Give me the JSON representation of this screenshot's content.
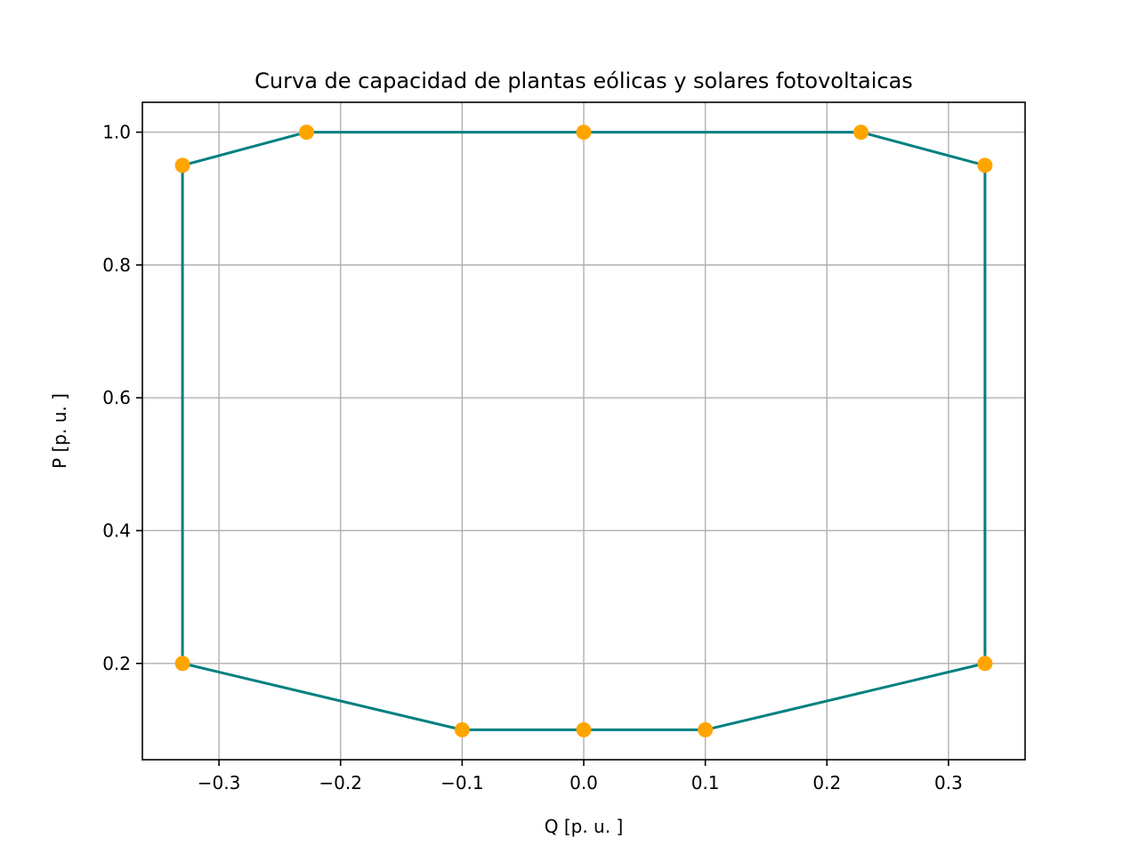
{
  "chart_data": {
    "type": "line",
    "title": "Curva de capacidad de plantas eólicas y solares fotovoltaicas",
    "xlabel": "Q [p. u. ]",
    "ylabel": "P [p. u. ]",
    "xlim": [
      -0.363,
      0.363
    ],
    "ylim": [
      0.055,
      1.045
    ],
    "grid": true,
    "x_ticks": [
      -0.3,
      -0.2,
      -0.1,
      0.0,
      0.1,
      0.2,
      0.3
    ],
    "x_tick_labels": [
      "−0.3",
      "−0.2",
      "−0.1",
      "0.0",
      "0.1",
      "0.2",
      "0.3"
    ],
    "y_ticks": [
      0.2,
      0.4,
      0.6,
      0.8,
      1.0
    ],
    "y_tick_labels": [
      "0.2",
      "0.4",
      "0.6",
      "0.8",
      "1.0"
    ],
    "series": [
      {
        "kind": "line",
        "color": "#008080",
        "x": [
          -0.33,
          -0.228,
          0.0,
          0.228,
          0.33,
          0.33,
          0.1,
          0.0,
          -0.1,
          -0.33,
          -0.33
        ],
        "y": [
          0.95,
          1.0,
          1.0,
          1.0,
          0.95,
          0.2,
          0.1,
          0.1,
          0.1,
          0.2,
          0.95
        ]
      },
      {
        "kind": "scatter",
        "color": "#ffa500",
        "x": [
          -0.33,
          -0.228,
          0.0,
          0.228,
          0.33,
          0.33,
          0.1,
          0.0,
          -0.1,
          -0.33
        ],
        "y": [
          0.95,
          1.0,
          1.0,
          1.0,
          0.95,
          0.2,
          0.1,
          0.1,
          0.1,
          0.2
        ]
      }
    ]
  }
}
